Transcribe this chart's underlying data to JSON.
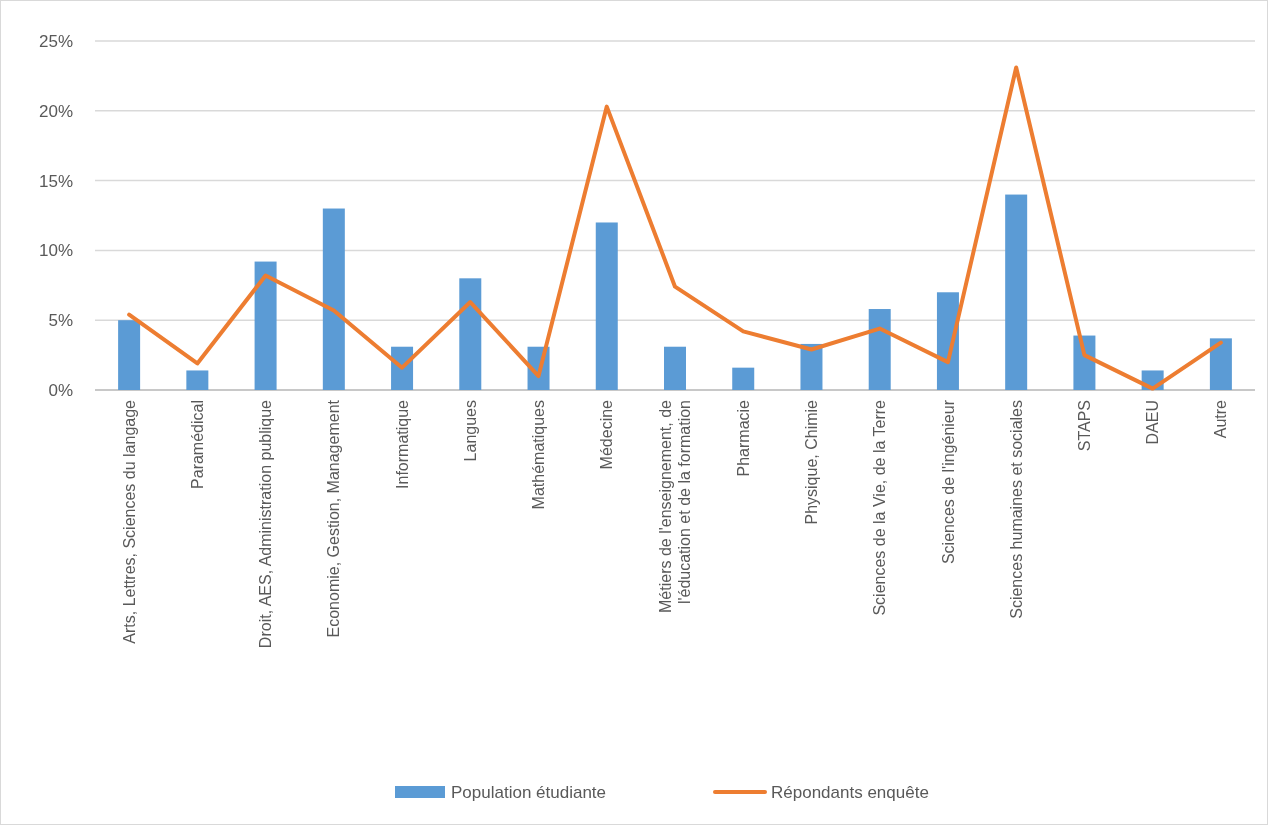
{
  "chart_data": {
    "type": "bar",
    "categories": [
      "Arts, Lettres, Sciences du langage",
      "Paramédical",
      "Droit, AES, Administration publique",
      "Economie, Gestion, Management",
      "Informatique",
      "Langues",
      "Mathématiques",
      "Médecine",
      "Métiers de l'enseignement, de l'éducation et de la formation",
      "Pharmacie",
      "Physique, Chimie",
      "Sciences de la Vie, de la Terre",
      "Sciences de l'ingénieur",
      "Sciences humaines et sociales",
      "STAPS",
      "DAEU",
      "Autre"
    ],
    "series": [
      {
        "name": "Population étudiante",
        "color": "#5b9bd5",
        "values": [
          5.0,
          1.4,
          9.2,
          13.0,
          3.1,
          8.0,
          3.1,
          12.0,
          3.1,
          1.6,
          3.3,
          5.8,
          7.0,
          14.0,
          3.9,
          1.4,
          3.7
        ]
      },
      {
        "name": "Répondants enquête",
        "type": "line",
        "color": "#ed7d31",
        "values": [
          5.4,
          1.9,
          8.2,
          5.7,
          1.6,
          6.3,
          1.0,
          20.3,
          7.4,
          4.2,
          2.9,
          4.4,
          2.0,
          23.1,
          2.5,
          0.1,
          3.4
        ]
      }
    ],
    "ylim": [
      0,
      25
    ],
    "yticks": [
      {
        "value": 0,
        "label": "0%"
      },
      {
        "value": 5,
        "label": "5%"
      },
      {
        "value": 10,
        "label": "10%"
      },
      {
        "value": 15,
        "label": "15%"
      },
      {
        "value": 20,
        "label": "20%"
      },
      {
        "value": 25,
        "label": "25%"
      }
    ],
    "grid": "y",
    "legend": "bottom",
    "marker": "none",
    "line_style": "solid"
  }
}
